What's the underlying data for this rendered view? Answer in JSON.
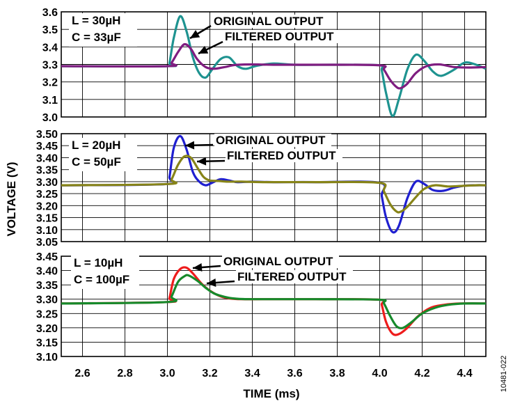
{
  "figure_id": "10481-022",
  "chart_data": [
    {
      "type": "line",
      "xlabel": "TIME (ms)",
      "ylabel": "VOLTAGE (V)",
      "xlim": [
        2.5,
        4.5
      ],
      "ylim": [
        3.0,
        3.6
      ],
      "yticks": [
        "3.0",
        "3.1",
        "3.2",
        "3.3",
        "3.4",
        "3.5",
        "3.6"
      ],
      "xticks": [
        "2.6",
        "2.8",
        "3.0",
        "3.2",
        "3.4",
        "3.6",
        "3.8",
        "4.0",
        "4.2",
        "4.4"
      ],
      "grid": true,
      "params": [
        "L = 30µH",
        "C = 33µF"
      ],
      "annotations": [
        "ORIGINAL OUTPUT",
        "FILTERED OUTPUT"
      ],
      "series": [
        {
          "color": "#1e9390",
          "x": [
            2.5,
            3.0,
            3.01,
            3.03,
            3.06,
            3.09,
            3.12,
            3.15,
            3.18,
            3.21,
            3.25,
            3.29,
            3.33,
            3.37,
            3.42,
            3.5,
            3.6,
            3.8,
            4.0,
            4.01,
            4.03,
            4.06,
            4.09,
            4.13,
            4.17,
            4.21,
            4.25,
            4.29,
            4.35,
            4.4,
            4.45,
            4.5
          ],
          "y": [
            3.29,
            3.29,
            3.31,
            3.45,
            3.575,
            3.49,
            3.34,
            3.25,
            3.225,
            3.27,
            3.33,
            3.34,
            3.29,
            3.275,
            3.292,
            3.305,
            3.298,
            3.298,
            3.295,
            3.265,
            3.135,
            3.005,
            3.1,
            3.27,
            3.355,
            3.32,
            3.26,
            3.235,
            3.27,
            3.31,
            3.3,
            3.275
          ]
        },
        {
          "color": "#7f1d80",
          "x": [
            2.5,
            3.0,
            3.02,
            3.05,
            3.08,
            3.11,
            3.14,
            3.18,
            3.22,
            3.27,
            3.32,
            3.4,
            3.5,
            3.7,
            4.0,
            4.02,
            4.05,
            4.08,
            4.1,
            4.13,
            4.17,
            4.22,
            4.28,
            4.35,
            4.42,
            4.5
          ],
          "y": [
            3.29,
            3.29,
            3.31,
            3.37,
            3.415,
            3.39,
            3.33,
            3.285,
            3.275,
            3.285,
            3.297,
            3.3,
            3.298,
            3.298,
            3.295,
            3.27,
            3.21,
            3.17,
            3.165,
            3.19,
            3.25,
            3.29,
            3.3,
            3.285,
            3.282,
            3.285
          ]
        }
      ]
    },
    {
      "type": "line",
      "xlim": [
        2.5,
        4.5
      ],
      "ylim": [
        3.05,
        3.5
      ],
      "yticks": [
        "3.05",
        "3.10",
        "3.15",
        "3.20",
        "3.25",
        "3.30",
        "3.35",
        "3.40",
        "3.45",
        "3.50"
      ],
      "grid": true,
      "params": [
        "L = 20µH",
        "C = 50µF"
      ],
      "annotations": [
        "ORIGINAL OUTPUT",
        "FILTERED OUTPUT"
      ],
      "series": [
        {
          "color": "#1f1fd0",
          "x": [
            2.5,
            3.0,
            3.01,
            3.03,
            3.06,
            3.09,
            3.12,
            3.15,
            3.18,
            3.21,
            3.25,
            3.29,
            3.33,
            3.4,
            3.5,
            3.7,
            4.0,
            4.01,
            4.03,
            4.06,
            4.09,
            4.13,
            4.17,
            4.21,
            4.25,
            4.3,
            4.35,
            4.4,
            4.45,
            4.5
          ],
          "y": [
            3.285,
            3.29,
            3.32,
            3.44,
            3.49,
            3.435,
            3.34,
            3.3,
            3.285,
            3.295,
            3.31,
            3.305,
            3.298,
            3.3,
            3.298,
            3.298,
            3.295,
            3.24,
            3.15,
            3.09,
            3.115,
            3.23,
            3.3,
            3.29,
            3.265,
            3.262,
            3.275,
            3.283,
            3.285,
            3.285
          ]
        },
        {
          "color": "#878418",
          "x": [
            2.5,
            3.0,
            3.02,
            3.05,
            3.08,
            3.11,
            3.14,
            3.17,
            3.2,
            3.24,
            3.28,
            3.35,
            3.45,
            3.7,
            4.0,
            4.02,
            4.05,
            4.08,
            4.1,
            4.13,
            4.17,
            4.21,
            4.26,
            4.32,
            4.38,
            4.45,
            4.5
          ],
          "y": [
            3.285,
            3.29,
            3.31,
            3.37,
            3.405,
            3.4,
            3.36,
            3.32,
            3.305,
            3.303,
            3.3,
            3.3,
            3.298,
            3.298,
            3.295,
            3.26,
            3.205,
            3.175,
            3.175,
            3.195,
            3.235,
            3.27,
            3.285,
            3.28,
            3.282,
            3.285,
            3.285
          ]
        }
      ]
    },
    {
      "type": "line",
      "xlim": [
        2.5,
        4.5
      ],
      "ylim": [
        3.1,
        3.45
      ],
      "yticks": [
        "3.10",
        "3.15",
        "3.20",
        "3.25",
        "3.30",
        "3.35",
        "3.40",
        "3.45"
      ],
      "grid": true,
      "params": [
        "L = 10µH",
        "C = 100µF"
      ],
      "annotations": [
        "ORIGINAL OUTPUT",
        "FILTERED OUTPUT"
      ],
      "series": [
        {
          "color": "#ee1c1c",
          "x": [
            2.5,
            3.0,
            3.01,
            3.03,
            3.06,
            3.09,
            3.12,
            3.16,
            3.2,
            3.25,
            3.3,
            3.35,
            3.45,
            3.7,
            4.0,
            4.01,
            4.03,
            4.06,
            4.09,
            4.13,
            4.18,
            4.24,
            4.3,
            4.38,
            4.5
          ],
          "y": [
            3.285,
            3.29,
            3.305,
            3.37,
            3.405,
            3.41,
            3.39,
            3.355,
            3.33,
            3.31,
            3.302,
            3.3,
            3.3,
            3.3,
            3.298,
            3.28,
            3.22,
            3.18,
            3.178,
            3.2,
            3.24,
            3.27,
            3.28,
            3.285,
            3.285
          ]
        },
        {
          "color": "#168a2b",
          "x": [
            2.5,
            3.0,
            3.02,
            3.05,
            3.08,
            3.1,
            3.14,
            3.18,
            3.22,
            3.27,
            3.32,
            3.4,
            3.7,
            4.0,
            4.02,
            4.05,
            4.08,
            4.11,
            4.15,
            4.2,
            4.26,
            4.32,
            4.4,
            4.5
          ],
          "y": [
            3.285,
            3.29,
            3.31,
            3.36,
            3.38,
            3.383,
            3.365,
            3.34,
            3.32,
            3.308,
            3.302,
            3.3,
            3.3,
            3.298,
            3.285,
            3.24,
            3.205,
            3.2,
            3.22,
            3.25,
            3.27,
            3.28,
            3.285,
            3.285
          ]
        }
      ]
    }
  ]
}
